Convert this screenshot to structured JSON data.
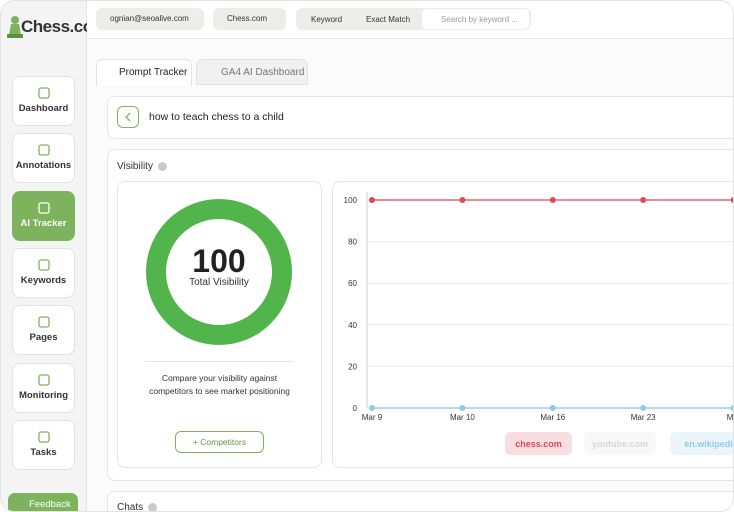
{
  "logo": "Chess.com",
  "sidebar": {
    "items": [
      "Dashboard",
      "Annotations",
      "AI Tracker",
      "Keywords",
      "Pages",
      "Monitoring",
      "Tasks"
    ],
    "feedback": "Feedback"
  },
  "topbar": {
    "account": "ognian@seoalive.com",
    "site": "Chess.com",
    "filter": "Keyword",
    "match": "Exact Match",
    "search_placeholder": "Search by keyword ..."
  },
  "tabs": [
    "Prompt Tracker",
    "GA4 AI Dashboard"
  ],
  "prompt": "how to teach chess to a child",
  "visibility": {
    "title": "Visibility",
    "score": 100,
    "score_label": "Total Visibility",
    "note": "Compare your visibility against competitors to see market positioning",
    "button": "+ Competitors"
  },
  "chart_data": {
    "type": "line",
    "categories": [
      "Mar 9",
      "Mar 10",
      "Mar 16",
      "Mar 23",
      "Mar"
    ],
    "series": [
      {
        "name": "chess.com",
        "color": "#e0475b",
        "values": [
          100,
          100,
          100,
          100,
          100
        ]
      },
      {
        "name": "youtube.com",
        "color": "#d6d6d6",
        "values": [
          0,
          0,
          0,
          0,
          0
        ]
      },
      {
        "name": "en.wikipedia",
        "color": "#8fcbea",
        "values": [
          0,
          0,
          0,
          0,
          0
        ]
      }
    ],
    "ylim": [
      0,
      100
    ],
    "yticks": [
      0,
      20,
      40,
      60,
      80,
      100
    ],
    "grid": true
  },
  "chats": {
    "title": "Chats"
  }
}
